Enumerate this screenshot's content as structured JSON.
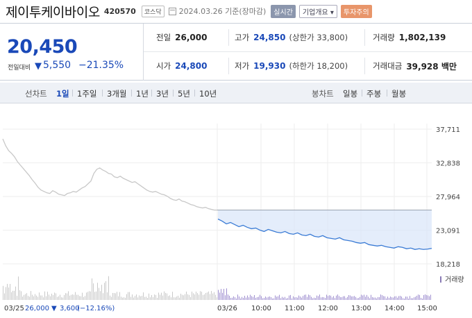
{
  "header": {
    "name": "제이투케이바이오",
    "code": "420570",
    "market": "코스닥",
    "date": "2024.03.26 기준(장마감)",
    "btn_live": "실시간",
    "btn_info": "기업개요 ▾",
    "btn_warn": "투자주의"
  },
  "summary": {
    "price": "20,450",
    "change_label": "전일대비",
    "change_arrow": "▼",
    "change_value": "5,550",
    "change_pct": "−21.35%"
  },
  "stats": {
    "prev_label": "전일",
    "prev": "26,000",
    "high_label": "고가",
    "high": "24,850",
    "high_limit": "(상한가 33,800)",
    "volume_label": "거래량",
    "volume": "1,802,139",
    "open_label": "시가",
    "open": "24,800",
    "low_label": "저가",
    "low": "19,930",
    "low_limit": "(하한가 18,200)",
    "amount_label": "거래대금",
    "amount": "39,928 백만"
  },
  "tabs": {
    "line_label": "선차트",
    "periods": [
      "1일",
      "1주일",
      "3개월",
      "1년",
      "3년",
      "5년",
      "10년"
    ],
    "candle_label": "봉차트",
    "candles": [
      "일봉",
      "주봉",
      "월봉"
    ]
  },
  "chart_data": {
    "type": "line",
    "y_ticks": [
      "37,711",
      "32,838",
      "27,964",
      "23,091",
      "18,218"
    ],
    "ylim": [
      18218,
      37711
    ],
    "prev_close": 26000,
    "x_ticks": [
      "03/25",
      "03/26",
      "10:00",
      "11:00",
      "12:00",
      "13:00",
      "14:00",
      "15:00"
    ],
    "volume_label": "거래량",
    "footer": {
      "date": "03/25",
      "close": "26,000",
      "arrow": "▼",
      "change": "3,600",
      "pct": "(−12.16%)"
    },
    "series": [
      {
        "values_prev_day": [
          36300,
          35300,
          34600,
          34200,
          33700,
          33000,
          32500,
          32000,
          31500,
          31000,
          30400,
          29900,
          29300,
          28900,
          28700,
          28500,
          28400,
          28800,
          28600,
          28300,
          28200,
          28100,
          28400,
          28500,
          28700,
          28600,
          28900,
          29200,
          29400,
          29800,
          30200,
          31300,
          31900,
          32100,
          31800,
          31600,
          31300,
          31200,
          30800,
          30700,
          30900,
          30600,
          30400,
          30200,
          30000,
          30100,
          29800,
          29500,
          29200,
          28900,
          28700,
          28600,
          28700,
          28500,
          28300,
          28200,
          28000,
          27700,
          27500,
          27400,
          27600,
          27300,
          27200,
          27000,
          26800,
          26700,
          26500,
          26400,
          26300,
          26400,
          26200,
          26100,
          26000,
          26000
        ],
        "values_curr_day": [
          24700,
          24400,
          24000,
          24200,
          23900,
          23600,
          23800,
          23500,
          23300,
          23400,
          23100,
          22900,
          23200,
          23000,
          22800,
          22700,
          22900,
          22600,
          22500,
          22700,
          22400,
          22300,
          22500,
          22200,
          22100,
          22300,
          22000,
          21900,
          21800,
          22000,
          21700,
          21600,
          21500,
          21300,
          21200,
          21300,
          21000,
          20900,
          20800,
          20900,
          20700,
          20600,
          20500,
          20700,
          20600,
          20400,
          20500,
          20300,
          20400,
          20300,
          20350,
          20450
        ]
      }
    ]
  }
}
